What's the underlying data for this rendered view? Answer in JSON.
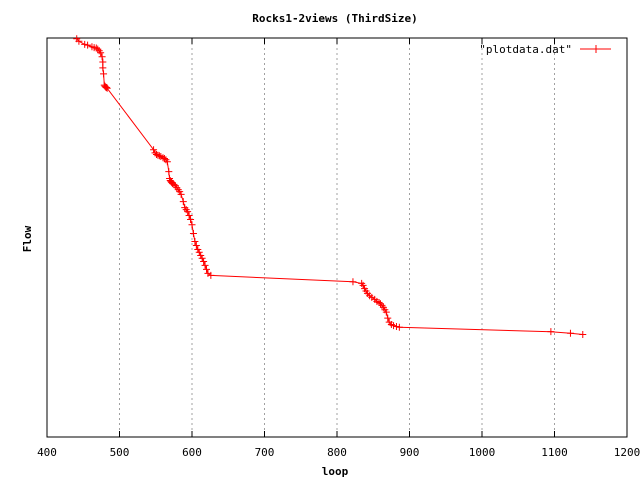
{
  "chart_data": {
    "type": "line",
    "title": "Rocks1-2views (ThirdSize)",
    "xlabel": "loop",
    "ylabel": "Flow",
    "xlim": [
      400,
      1200
    ],
    "ylim": [
      0,
      1
    ],
    "x_ticks": [
      400,
      500,
      600,
      700,
      800,
      900,
      1000,
      1100,
      1200
    ],
    "x_tick_labels": [
      "400",
      "500",
      "600",
      "700",
      "800",
      "900",
      "1000",
      "1100",
      "1200"
    ],
    "grid": "vertical dotted",
    "legend_position": "top-right",
    "colors": {
      "series": "#ff0000",
      "grid": "#a0a0a0",
      "axis": "#000000"
    },
    "series": [
      {
        "name": "\"plotdata.dat\"",
        "x": [
          441,
          444,
          452,
          456,
          462,
          465,
          468,
          470,
          472,
          474,
          476,
          477,
          477,
          478,
          479,
          480,
          481,
          482,
          483,
          547,
          549,
          551,
          553,
          555,
          557,
          560,
          562,
          564,
          566,
          568,
          569,
          570,
          571,
          572,
          573,
          575,
          577,
          579,
          581,
          583,
          585,
          588,
          590,
          592,
          594,
          596,
          598,
          600,
          602,
          604,
          606,
          608,
          610,
          612,
          614,
          616,
          618,
          620,
          622,
          626,
          822,
          834,
          836,
          838,
          840,
          842,
          845,
          848,
          852,
          855,
          858,
          860,
          862,
          864,
          866,
          868,
          870,
          872,
          875,
          878,
          882,
          886,
          1095,
          1122,
          1139
        ],
        "y": [
          0.998,
          0.992,
          0.984,
          0.982,
          0.978,
          0.976,
          0.975,
          0.972,
          0.968,
          0.963,
          0.953,
          0.94,
          0.925,
          0.91,
          0.882,
          0.879,
          0.877,
          0.876,
          0.874,
          0.72,
          0.712,
          0.708,
          0.706,
          0.705,
          0.703,
          0.7,
          0.698,
          0.695,
          0.69,
          0.665,
          0.648,
          0.643,
          0.64,
          0.638,
          0.635,
          0.633,
          0.63,
          0.625,
          0.62,
          0.615,
          0.608,
          0.59,
          0.575,
          0.57,
          0.565,
          0.555,
          0.545,
          0.532,
          0.51,
          0.49,
          0.48,
          0.47,
          0.463,
          0.455,
          0.448,
          0.44,
          0.43,
          0.42,
          0.41,
          0.405,
          0.389,
          0.385,
          0.38,
          0.372,
          0.366,
          0.36,
          0.354,
          0.35,
          0.345,
          0.34,
          0.337,
          0.334,
          0.33,
          0.325,
          0.319,
          0.313,
          0.298,
          0.288,
          0.282,
          0.279,
          0.277,
          0.275,
          0.264,
          0.26,
          0.257
        ]
      }
    ]
  }
}
